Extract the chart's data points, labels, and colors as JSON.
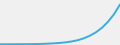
{
  "x": [
    0,
    1,
    2,
    3,
    4,
    5,
    6,
    7,
    8,
    9,
    10,
    11,
    12,
    13,
    14,
    15,
    16,
    17,
    18,
    19,
    20
  ],
  "y": [
    1.0,
    1.0,
    1.0,
    1.1,
    1.1,
    1.2,
    1.3,
    1.5,
    1.8,
    2.2,
    2.8,
    3.6,
    4.8,
    6.5,
    9.0,
    12.5,
    17.0,
    23.0,
    31.0,
    41.0,
    54.0
  ],
  "line_color": "#3aade0",
  "line_width": 1.4,
  "background_color": "#f0f0f0",
  "ylim": [
    0,
    60
  ],
  "xlim": [
    0,
    20
  ]
}
